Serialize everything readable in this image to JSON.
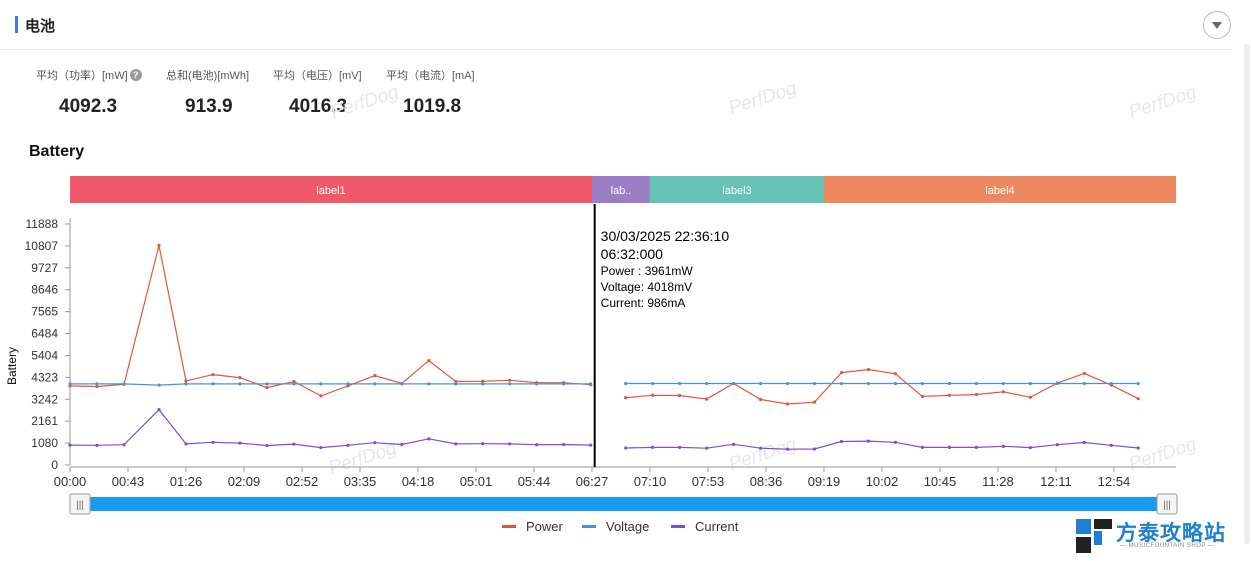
{
  "header": {
    "title": "电池"
  },
  "stats": [
    {
      "label": "平均（功率）[mW]",
      "value": "4092.3",
      "help": "?"
    },
    {
      "label": "总和(电池)[mWh]",
      "value": "913.9"
    },
    {
      "label": "平均（电压）[mV]",
      "value": "4016.3"
    },
    {
      "label": "平均（电流）[mA]",
      "value": "1019.8"
    }
  ],
  "watermark": "PerfDog",
  "colors": {
    "accent": "#3a78e0",
    "power": "#e0573d",
    "voltage": "#4a90e2",
    "current": "#7b4fd6",
    "slider": "#1a9af0"
  },
  "chart_data": {
    "type": "line",
    "title": "Battery",
    "ylabel": "Battery",
    "xlabel": "",
    "ylim": [
      0,
      11888
    ],
    "yticks": [
      "11888",
      "10807",
      "9727",
      "8646",
      "7565",
      "6484",
      "5404",
      "4323",
      "3242",
      "2161",
      "1080",
      "0"
    ],
    "ytick_values": [
      11888,
      10807,
      9727,
      8646,
      7565,
      6484,
      5404,
      4323,
      3242,
      2161,
      1080,
      0
    ],
    "xticks": [
      "00:00",
      "00:43",
      "01:26",
      "02:09",
      "02:52",
      "03:35",
      "04:18",
      "05:01",
      "05:44",
      "06:27",
      "07:10",
      "07:53",
      "08:36",
      "09:19",
      "10:02",
      "10:45",
      "11:28",
      "12:11",
      "12:54"
    ],
    "labels": [
      {
        "text": "label1",
        "color": "#f05a68",
        "start": "00:00",
        "end": "06:27"
      },
      {
        "text": "lab..",
        "color": "#9b7fc6",
        "start": "06:27",
        "end": "07:10"
      },
      {
        "text": "label3",
        "color": "#66c2b4",
        "start": "07:10",
        "end": "09:19"
      },
      {
        "text": "label4",
        "color": "#ee8860",
        "start": "09:19",
        "end": "13:40"
      }
    ],
    "legend_position": "bottom",
    "grid": false,
    "series": [
      {
        "name": "Power",
        "color": "#e0573d",
        "segments": [
          {
            "x_minutes": [
              0,
              20,
              40,
              66,
              86,
              106,
              126,
              146,
              166,
              186,
              206,
              226,
              246,
              266,
              286,
              306,
              326,
              346,
              366,
              386
            ],
            "values": [
              3900,
              3870,
              3980,
              10830,
              4150,
              4460,
              4310,
              3820,
              4120,
              3410,
              3900,
              4410,
              4020,
              5150,
              4120,
              4130,
              4180,
              4060,
              4060,
              3960
            ]
          },
          {
            "x_minutes": [
              412,
              432,
              452,
              472,
              492,
              512,
              532,
              552,
              572,
              592,
              612,
              632,
              652,
              672,
              692,
              712,
              732,
              752,
              772,
              792
            ],
            "values": [
              3320,
              3440,
              3430,
              3250,
              4020,
              3230,
              3010,
              3100,
              4560,
              4710,
              4500,
              3380,
              3440,
              3480,
              3610,
              3340,
              4040,
              4520,
              3940,
              3270
            ]
          }
        ]
      },
      {
        "name": "Voltage",
        "color": "#4a90e2",
        "segments": [
          {
            "x_minutes": [
              0,
              20,
              40,
              66,
              86,
              106,
              126,
              146,
              166,
              186,
              206,
              226,
              246,
              266,
              286,
              306,
              326,
              346,
              366,
              386
            ],
            "values": [
              4000,
              4000,
              4000,
              3940,
              4000,
              4000,
              4000,
              4000,
              4000,
              4000,
              4000,
              4000,
              4000,
              4000,
              4000,
              4000,
              4000,
              4000,
              4000,
              4000
            ]
          },
          {
            "x_minutes": [
              412,
              432,
              452,
              472,
              492,
              512,
              532,
              552,
              572,
              592,
              612,
              632,
              652,
              672,
              692,
              712,
              732,
              752,
              772,
              792
            ],
            "values": [
              4018,
              4018,
              4018,
              4018,
              4018,
              4018,
              4018,
              4018,
              4018,
              4018,
              4018,
              4018,
              4018,
              4018,
              4018,
              4018,
              4018,
              4018,
              4018,
              4018
            ]
          }
        ]
      },
      {
        "name": "Current",
        "color": "#7b4fd6",
        "segments": [
          {
            "x_minutes": [
              0,
              20,
              40,
              66,
              86,
              106,
              126,
              146,
              166,
              186,
              206,
              226,
              246,
              266,
              286,
              306,
              326,
              346,
              366,
              386
            ],
            "values": [
              980,
              970,
              1000,
              2730,
              1040,
              1120,
              1080,
              960,
              1030,
              860,
              970,
              1100,
              1010,
              1290,
              1040,
              1050,
              1040,
              1000,
              1010,
              980
            ]
          },
          {
            "x_minutes": [
              412,
              432,
              452,
              472,
              492,
              512,
              532,
              552,
              572,
              592,
              612,
              632,
              652,
              672,
              692,
              712,
              732,
              752,
              772,
              792
            ],
            "values": [
              840,
              870,
              870,
              830,
              1020,
              830,
              780,
              790,
              1160,
              1180,
              1120,
              870,
              870,
              870,
              920,
              860,
              1000,
              1110,
              970,
              840
            ]
          }
        ]
      }
    ],
    "cursor": {
      "x_minutes": 389,
      "date": "30/03/2025 22:36:10",
      "time": "06:32:000",
      "lines": [
        "Power  : 3961mW",
        "Voltage: 4018mV",
        "Current: 986mA"
      ]
    }
  },
  "legend": [
    {
      "name": "Power"
    },
    {
      "name": "Voltage"
    },
    {
      "name": "Current"
    }
  ],
  "slider": {
    "handle_left": "|||",
    "handle_right": "|||"
  },
  "logo": {
    "text": "方泰攻略站",
    "sub": "— MUSICFOUNTAIN SHOP —"
  }
}
